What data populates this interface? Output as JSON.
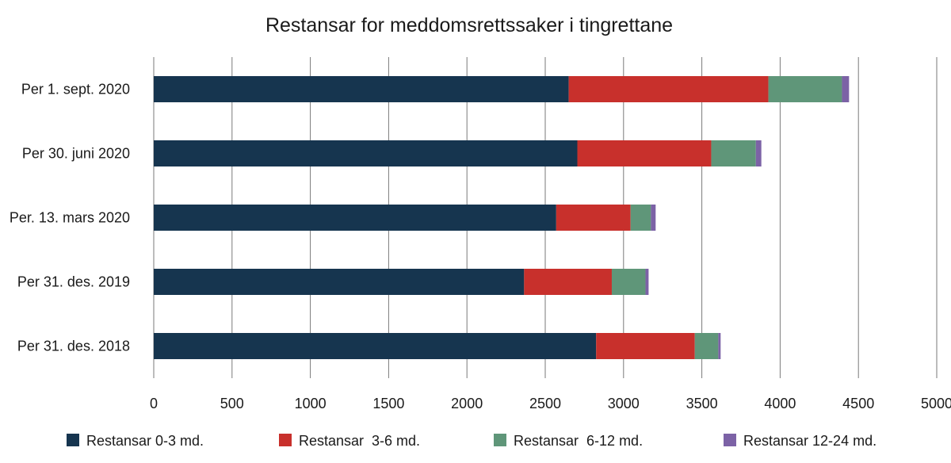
{
  "chart_data": {
    "type": "bar",
    "orientation": "horizontal",
    "stacked": true,
    "title": "Restansar for meddomsrettssaker i tingrettane",
    "xlabel": "",
    "ylabel": "",
    "xlim": [
      0,
      5000
    ],
    "xticks": [
      0,
      500,
      1000,
      1500,
      2000,
      2500,
      3000,
      3500,
      4000,
      4500,
      5000
    ],
    "grid": true,
    "legend_position": "bottom",
    "categories": [
      "Per 1. sept. 2020",
      "Per 30. juni 2020",
      "Per. 13. mars 2020",
      "Per 31. des. 2019",
      "Per 31. des. 2018"
    ],
    "series": [
      {
        "name": "Restansar 0-3 md.",
        "color": "#16354f",
        "values": [
          2650,
          2705,
          2570,
          2365,
          2825
        ]
      },
      {
        "name": "Restansar  3-6 md.",
        "color": "#c8302c",
        "values": [
          1275,
          855,
          475,
          560,
          630
        ]
      },
      {
        "name": "Restansar  6-12 md.",
        "color": "#5f9679",
        "values": [
          470,
          285,
          130,
          215,
          150
        ]
      },
      {
        "name": "Restansar 12-24 md.",
        "color": "#7c62a6",
        "values": [
          45,
          35,
          30,
          20,
          15
        ]
      }
    ]
  }
}
